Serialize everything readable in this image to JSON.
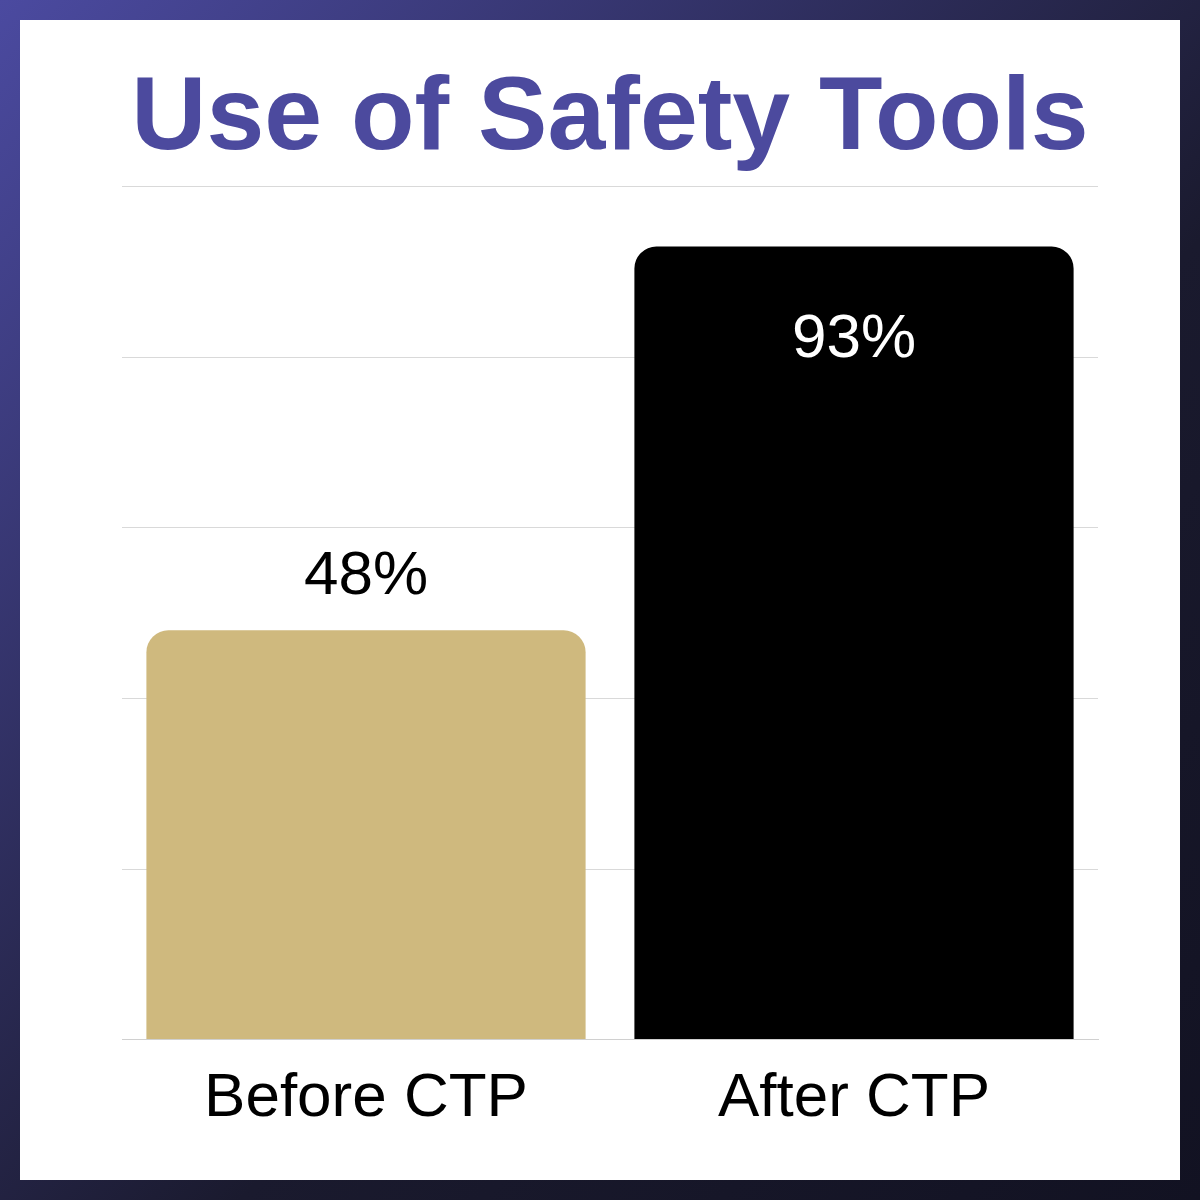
{
  "chart_data": {
    "type": "bar",
    "title": "Use of Safety Tools",
    "categories": [
      "Before CTP",
      "After CTP"
    ],
    "values": [
      48,
      93
    ],
    "colors": [
      "#cfb97e",
      "#000000"
    ],
    "value_labels": [
      "48%",
      "93%"
    ],
    "ylim": [
      0,
      100
    ],
    "yticks": [
      {
        "value": 0,
        "label": null
      },
      {
        "value": 20,
        "label": null
      },
      {
        "value": 40,
        "label": null
      },
      {
        "value": 60,
        "label": null
      },
      {
        "value": 80,
        "label": null
      },
      {
        "value": 100,
        "label": null
      }
    ],
    "grid": "y",
    "tick_labels": "x",
    "legend": false
  }
}
